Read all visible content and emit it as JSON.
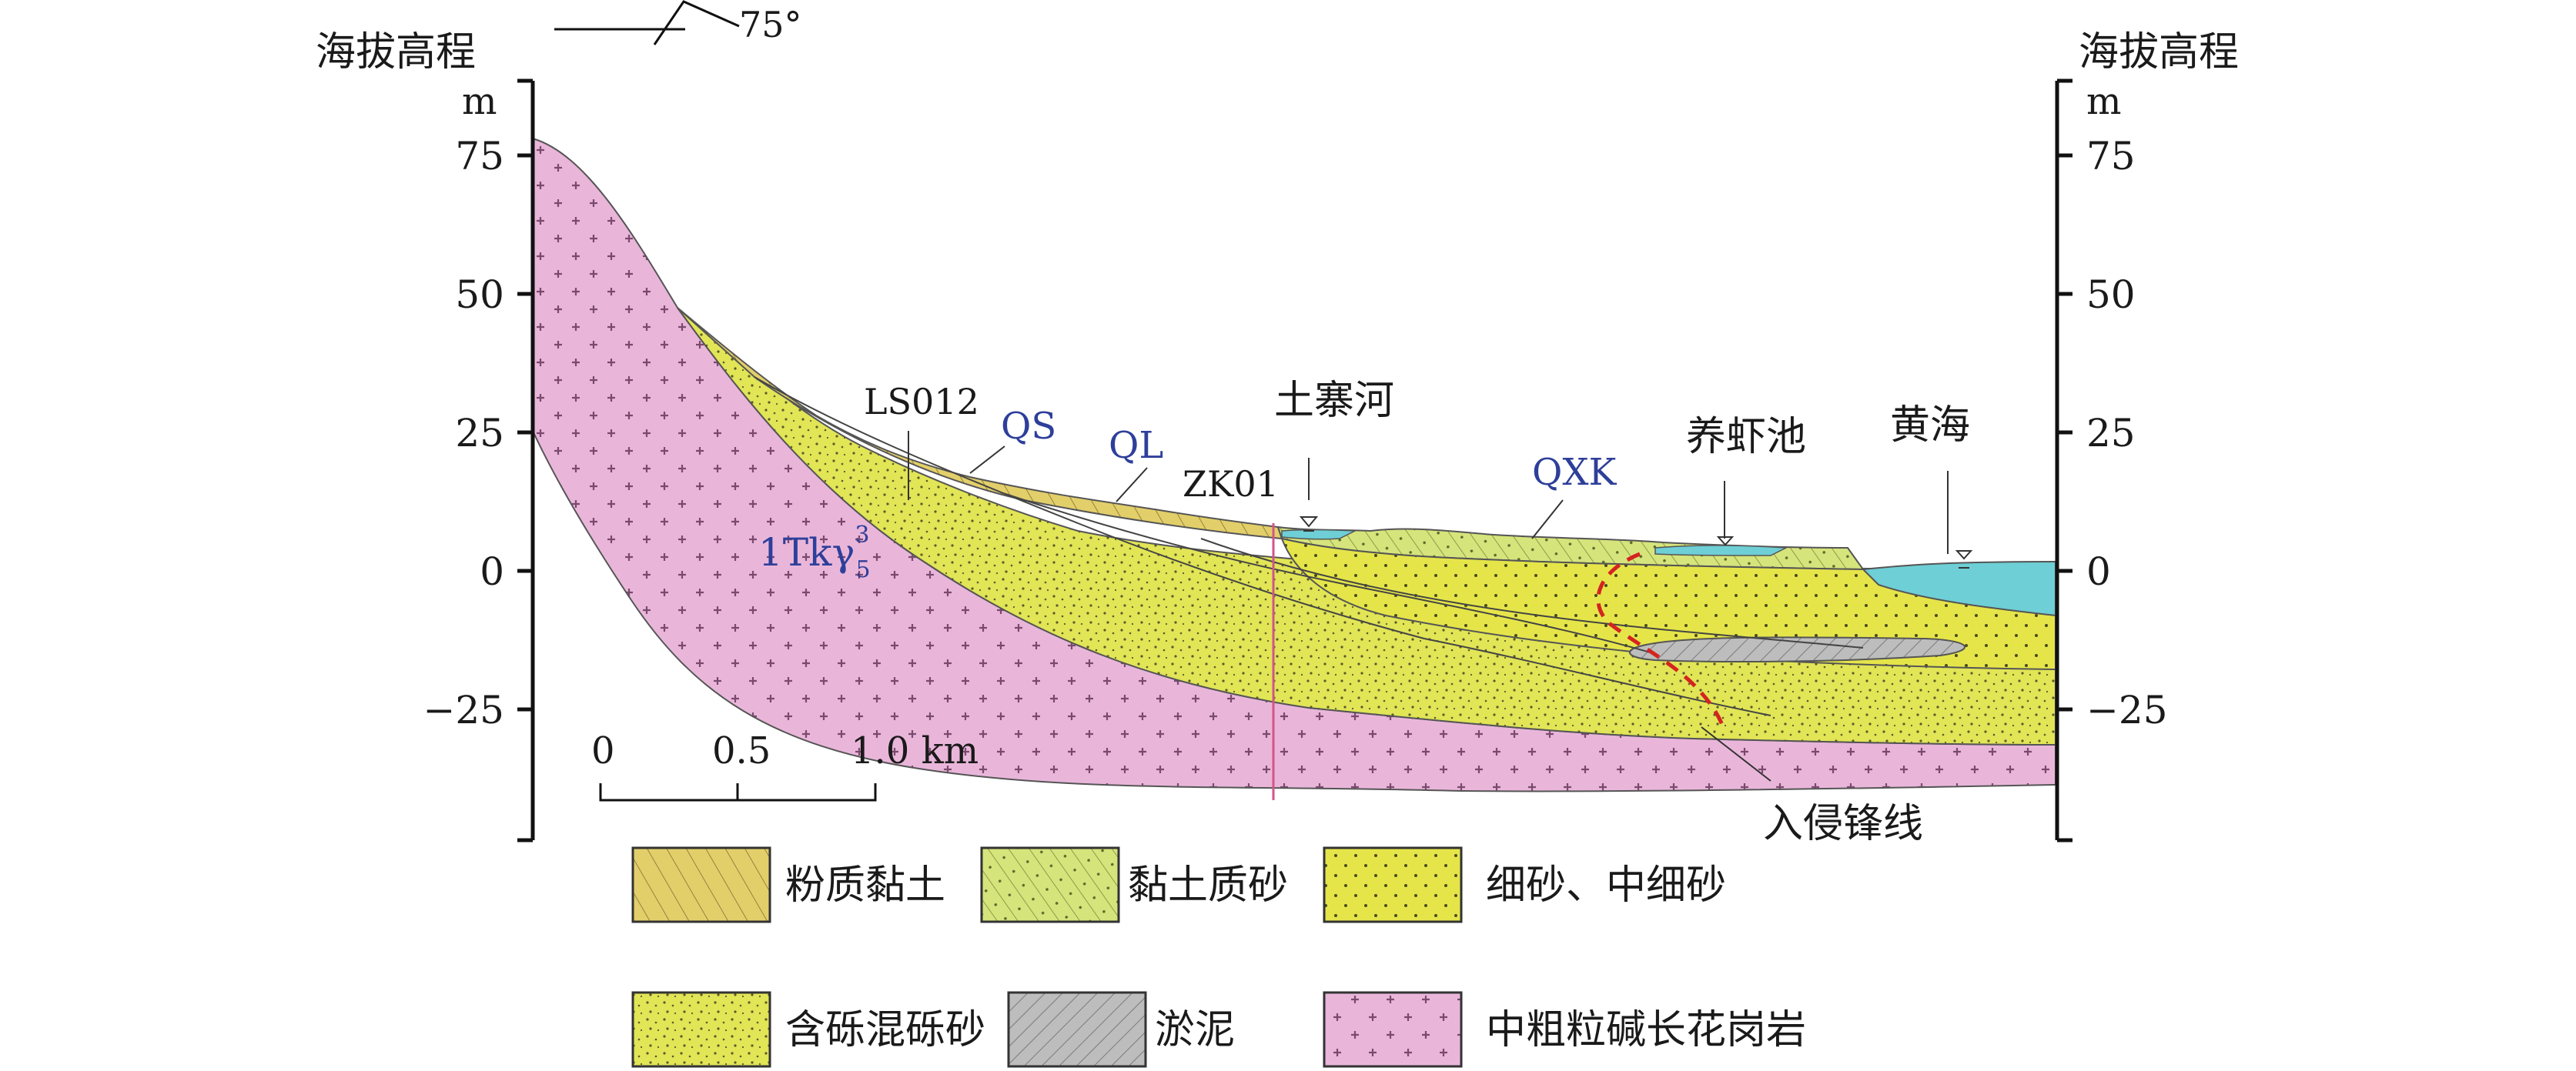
{
  "axis": {
    "left_title": "海拔高程",
    "right_title": "海拔高程",
    "unit": "m",
    "ticks": [
      "75",
      "50",
      "25",
      "0",
      "−25"
    ]
  },
  "orientation": {
    "dip": "75°"
  },
  "scale_bar": {
    "labels": [
      "0",
      "0.5",
      "1.0 km"
    ]
  },
  "labels": {
    "borehole_LS012": "LS012",
    "borehole_ZK01": "ZK01",
    "unit_QS": "QS",
    "unit_QL": "QL",
    "unit_QXK": "QXK",
    "granite_code": "1Tkγ",
    "granite_super": "3",
    "granite_sub": "5",
    "river": "土寨河",
    "shrimp_pond": "养虾池",
    "yellow_sea": "黄海",
    "intrusion_front": "入侵锋线"
  },
  "legend": [
    {
      "label": "粉质黏土",
      "pattern": "silty-clay"
    },
    {
      "label": "黏土质砂",
      "pattern": "clayey-sand"
    },
    {
      "label": "细砂、中细砂",
      "pattern": "fine-sand"
    },
    {
      "label": "含砾混砾砂",
      "pattern": "gravelly-sand"
    },
    {
      "label": "淤泥",
      "pattern": "silt-mud"
    },
    {
      "label": "中粗粒碱长花岗岩",
      "pattern": "granite"
    }
  ],
  "colors": {
    "silty_clay": "#e3cf6a",
    "clayey_sand": "#d6e47c",
    "fine_sand": "#e5e54a",
    "gravelly_sand": "#e1e556",
    "silt_mud": "#bdbdbd",
    "granite": "#e9b6da",
    "water": "#6ecfd6",
    "intrusion_line": "#d42420",
    "borehole": "#d2558a",
    "label_blue": "#2e3f9a"
  }
}
